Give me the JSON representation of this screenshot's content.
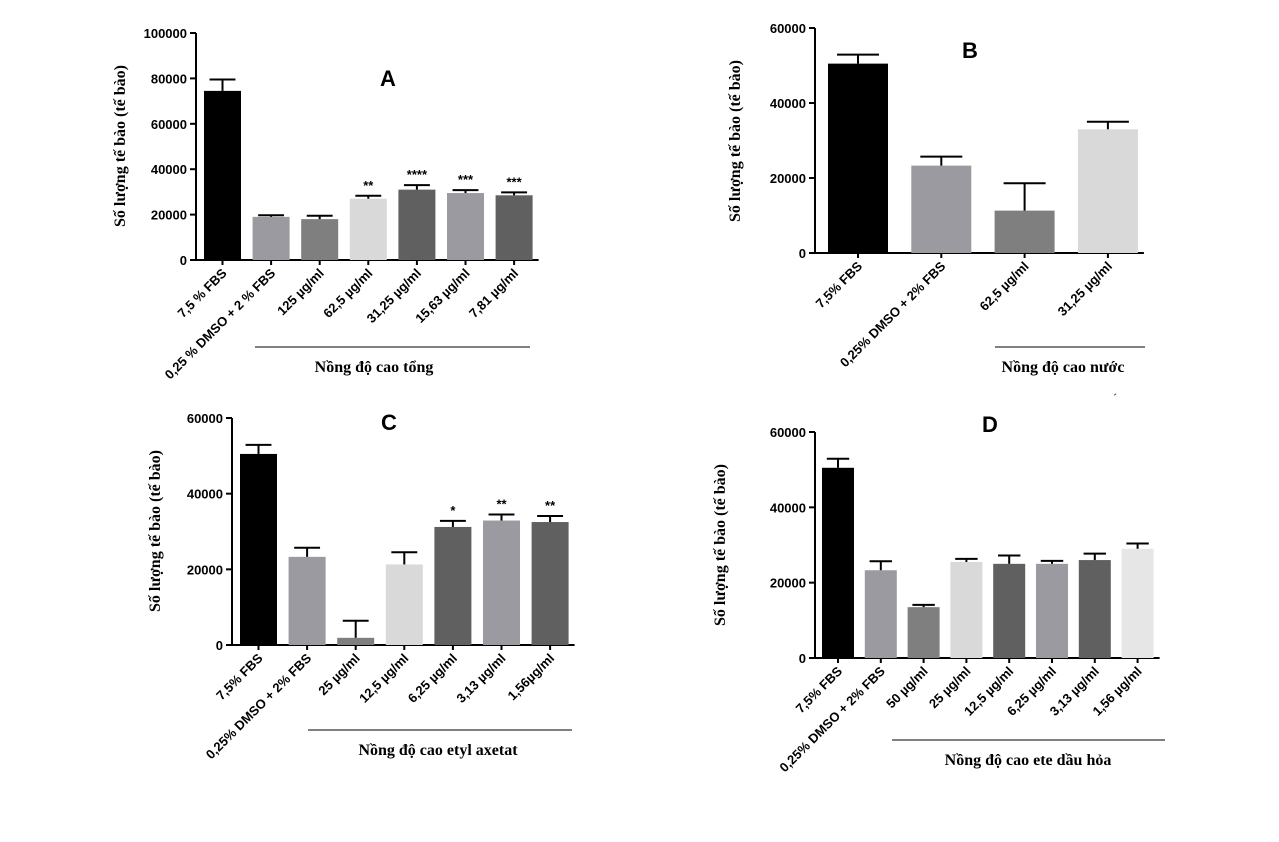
{
  "figure": {
    "stray_mark": "´"
  },
  "chart_data": [
    {
      "type": "bar",
      "panel": "A",
      "title": "A",
      "ylabel": "Số lượng tế bào (tế bào)",
      "xlabel": "Nồng độ cao tổng",
      "ylim": [
        0,
        100000
      ],
      "yticks": [
        0,
        20000,
        40000,
        60000,
        80000,
        100000
      ],
      "yticklabels": [
        "0",
        "20000",
        "40000",
        "60000",
        "80000",
        "100000"
      ],
      "grid": false,
      "categories": [
        "7,5 % FBS",
        "0,25 % DMSO + 2 % FBS",
        "125 µg/ml",
        "62,5 µg/ml",
        "31,25 µg/ml",
        "15,63 µg/ml",
        "7,81 µg/ml"
      ],
      "values": [
        74500,
        19000,
        18000,
        27000,
        31000,
        29500,
        28500
      ],
      "errors": [
        5000,
        700,
        1500,
        1300,
        2000,
        1300,
        1300
      ],
      "colors": [
        "#000000",
        "#9a9aa0",
        "#7f7f7f",
        "#d9d9d9",
        "#606060",
        "#9a9aa0",
        "#606060"
      ],
      "significance": [
        "",
        "",
        "",
        "**",
        "****",
        "***",
        "***"
      ],
      "group_start_index": 1
    },
    {
      "type": "bar",
      "panel": "B",
      "title": "B",
      "ylabel": "Số lượng tế bào (tế bào)",
      "xlabel": "Nồng độ cao nước",
      "ylim": [
        0,
        60000
      ],
      "yticks": [
        0,
        20000,
        40000,
        60000
      ],
      "yticklabels": [
        "0",
        "20000",
        "40000",
        "60000"
      ],
      "grid": false,
      "categories": [
        "7,5% FBS",
        "0,25% DMSO + 2% FBS",
        "62,5 µg/ml",
        "31,25 µg/ml"
      ],
      "values": [
        50500,
        23300,
        11300,
        33000
      ],
      "errors": [
        2400,
        2400,
        7300,
        2000
      ],
      "colors": [
        "#000000",
        "#9a9aa0",
        "#7f7f7f",
        "#d9d9d9"
      ],
      "significance": [
        "",
        "",
        "",
        ""
      ],
      "group_start_index": 2
    },
    {
      "type": "bar",
      "panel": "C",
      "title": "C",
      "ylabel": "Số lượng tế bào (tế bào)",
      "xlabel": "Nồng độ cao etyl axetat",
      "ylim": [
        0,
        60000
      ],
      "yticks": [
        0,
        20000,
        40000,
        60000
      ],
      "yticklabels": [
        "0",
        "20000",
        "40000",
        "60000"
      ],
      "grid": false,
      "categories": [
        "7,5% FBS",
        "0,25% DMSO + 2% FBS",
        "25 µg/ml",
        "12,5 µg/ml",
        "6,25 µg/ml",
        "3,13 µg/ml",
        "1,56µg/ml"
      ],
      "values": [
        50500,
        23300,
        1900,
        21300,
        31200,
        32900,
        32500
      ],
      "errors": [
        2400,
        2400,
        4500,
        3200,
        1600,
        1600,
        1600
      ],
      "colors": [
        "#000000",
        "#9a9aa0",
        "#7f7f7f",
        "#d9d9d9",
        "#606060",
        "#9a9aa0",
        "#606060"
      ],
      "significance": [
        "",
        "",
        "",
        "",
        "*",
        "**",
        "**"
      ],
      "group_start_index": 2
    },
    {
      "type": "bar",
      "panel": "D",
      "title": "D",
      "ylabel": "Số lượng tế bào (tế bào)",
      "xlabel": "Nồng độ cao ete dầu hỏa",
      "ylim": [
        0,
        60000
      ],
      "yticks": [
        0,
        20000,
        40000,
        60000
      ],
      "yticklabels": [
        "0",
        "20000",
        "40000",
        "60000"
      ],
      "grid": false,
      "categories": [
        "7,5% FBS",
        "0,25% DMSO + 2% FBS",
        "50 µg/ml",
        "25 µg/ml",
        "12,5 µg/ml",
        "6,25 µg/ml",
        "3,13 µg/ml",
        "1,56 µg/ml"
      ],
      "values": [
        50500,
        23300,
        13500,
        25500,
        25000,
        25000,
        26000,
        29000
      ],
      "errors": [
        2400,
        2400,
        600,
        800,
        2200,
        800,
        1700,
        1400
      ],
      "colors": [
        "#000000",
        "#9a9aa0",
        "#7f7f7f",
        "#d9d9d9",
        "#606060",
        "#9a9aa0",
        "#606060",
        "#e6e6e6"
      ],
      "significance": [
        "",
        "",
        "",
        "",
        "",
        "",
        "",
        ""
      ],
      "group_start_index": 2
    }
  ]
}
